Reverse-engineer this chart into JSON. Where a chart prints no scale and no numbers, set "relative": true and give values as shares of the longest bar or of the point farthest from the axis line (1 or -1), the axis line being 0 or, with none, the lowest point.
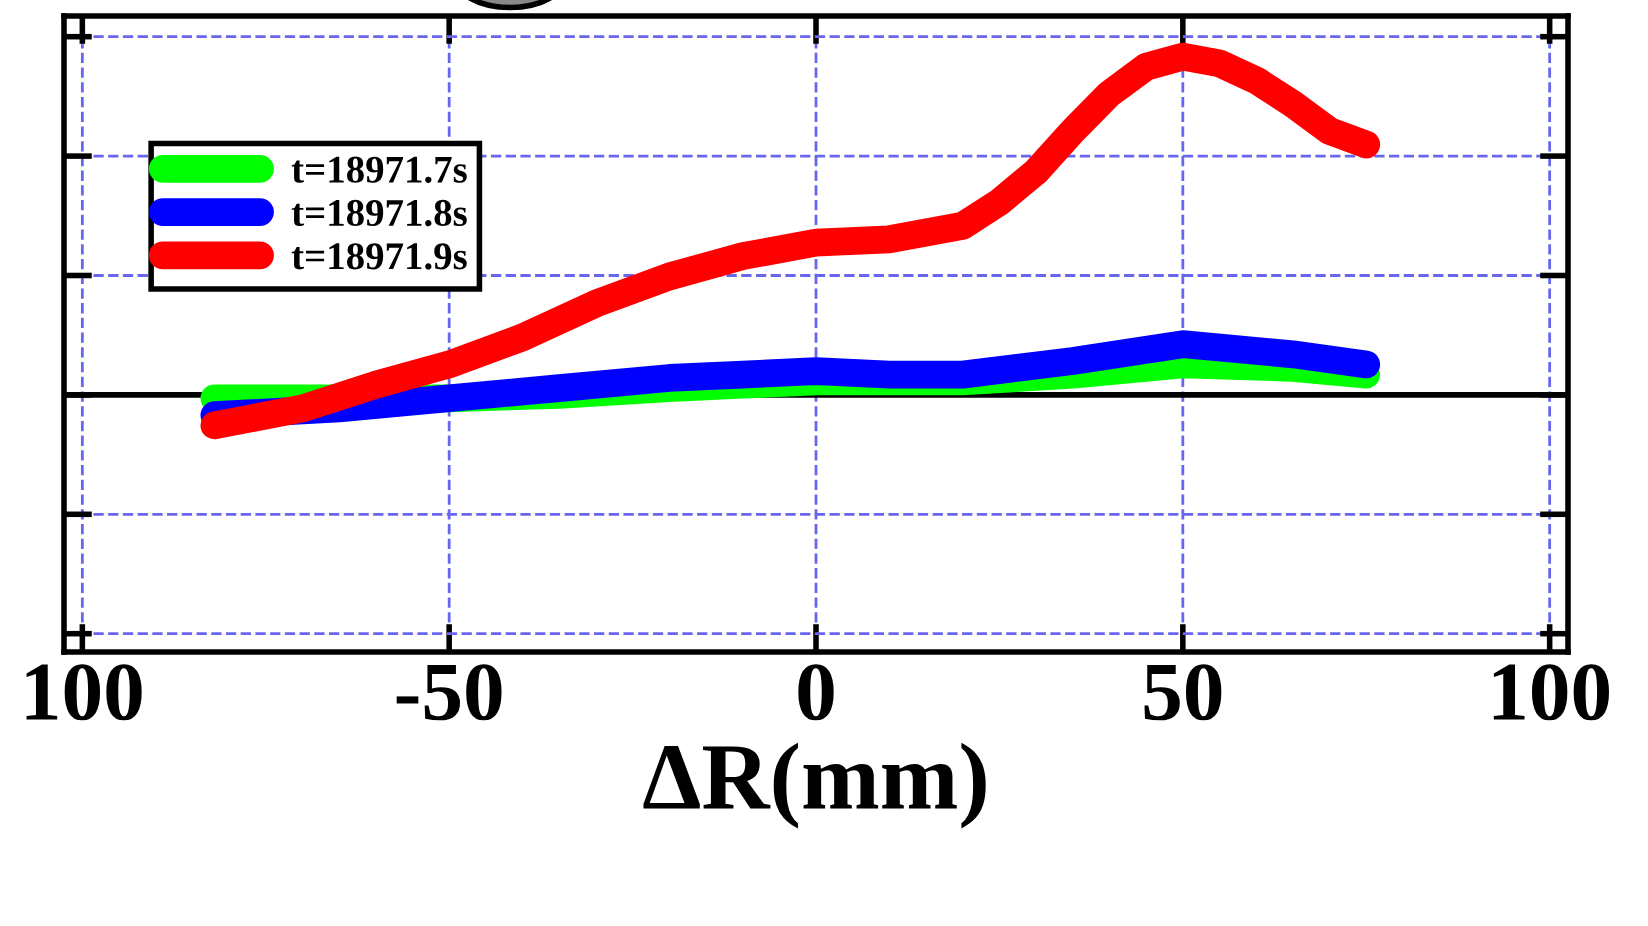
{
  "chart_data": {
    "type": "line",
    "xlabel": "ΔR(mm)",
    "relative": true,
    "xlim": [
      -102.5,
      102.5
    ],
    "xticks": [
      {
        "value": -100,
        "label": "100"
      },
      -50,
      0,
      50,
      100
    ],
    "grid": true,
    "legend": "top left",
    "line_style": "solid",
    "ref_lines": [
      {
        "axis": "y",
        "value": 0,
        "color": "#000000"
      }
    ],
    "series": [
      {
        "name": "t=18971.7s",
        "color": "#00ff00",
        "x": [
          -82,
          -65,
          -50,
          -35,
          -20,
          -10,
          0,
          10,
          20,
          35,
          50,
          65,
          75
        ],
        "values": [
          -0.01,
          -0.01,
          -0.01,
          0.0,
          0.02,
          0.03,
          0.04,
          0.04,
          0.04,
          0.06,
          0.09,
          0.08,
          0.06
        ]
      },
      {
        "name": "t=18971.8s",
        "color": "#0000ff",
        "x": [
          -82,
          -65,
          -50,
          -35,
          -20,
          -10,
          0,
          10,
          20,
          35,
          50,
          65,
          75
        ],
        "values": [
          -0.06,
          -0.04,
          -0.01,
          0.02,
          0.05,
          0.06,
          0.07,
          0.06,
          0.06,
          0.1,
          0.15,
          0.12,
          0.09
        ]
      },
      {
        "name": "t=18971.9s",
        "color": "#ff0000",
        "x": [
          -82,
          -70,
          -60,
          -50,
          -40,
          -30,
          -20,
          -10,
          0,
          10,
          20,
          25,
          30,
          35,
          40,
          45,
          50,
          55,
          60,
          65,
          70,
          75
        ],
        "values": [
          -0.09,
          -0.04,
          0.03,
          0.09,
          0.17,
          0.27,
          0.35,
          0.41,
          0.45,
          0.46,
          0.5,
          0.57,
          0.66,
          0.78,
          0.89,
          0.97,
          1.0,
          0.98,
          0.93,
          0.86,
          0.78,
          0.74
        ]
      }
    ]
  }
}
